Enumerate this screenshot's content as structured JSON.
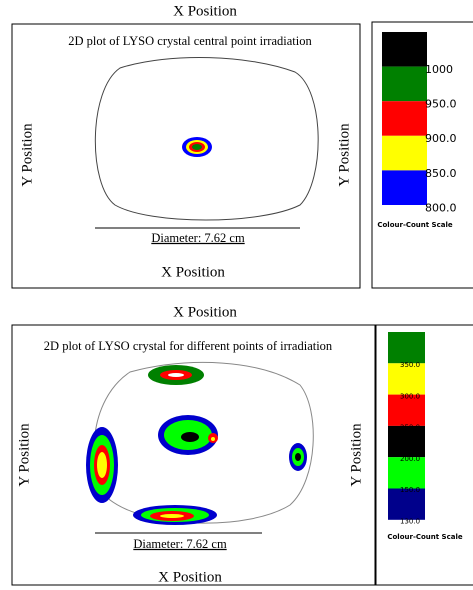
{
  "panels": [
    {
      "top_label": "X Position",
      "title": "2D plot of LYSO crystal central point irradiation",
      "y_label_left": "Y Position",
      "y_label_right": "Y Position",
      "x_label": "X Position",
      "diameter_label": "Diameter: 7.62 cm",
      "scale_labels": [
        "1000",
        "950.0",
        "900.0",
        "850.0",
        "800.0"
      ],
      "scale_colors": [
        "#000000",
        "#008000",
        "#ff0000",
        "#ffff00",
        "#0000ff"
      ],
      "scale_title": "Colour-Count Scale"
    },
    {
      "top_label": "X Position",
      "title": "2D plot of LYSO crystal for different points of irradiation",
      "y_label_left": "Y Position",
      "y_label_right": "Y Position",
      "x_label": "X Position",
      "diameter_label": "Diameter: 7.62 cm",
      "scale_labels": [
        "350.0",
        "300.0",
        "250.0",
        "200.0",
        "150.0",
        "130.0"
      ],
      "scale_colors": [
        "#008000",
        "#ffff00",
        "#ff0000",
        "#000000",
        "#00ff00",
        "#00008b"
      ],
      "scale_title": "Colour-Count Scale"
    }
  ]
}
